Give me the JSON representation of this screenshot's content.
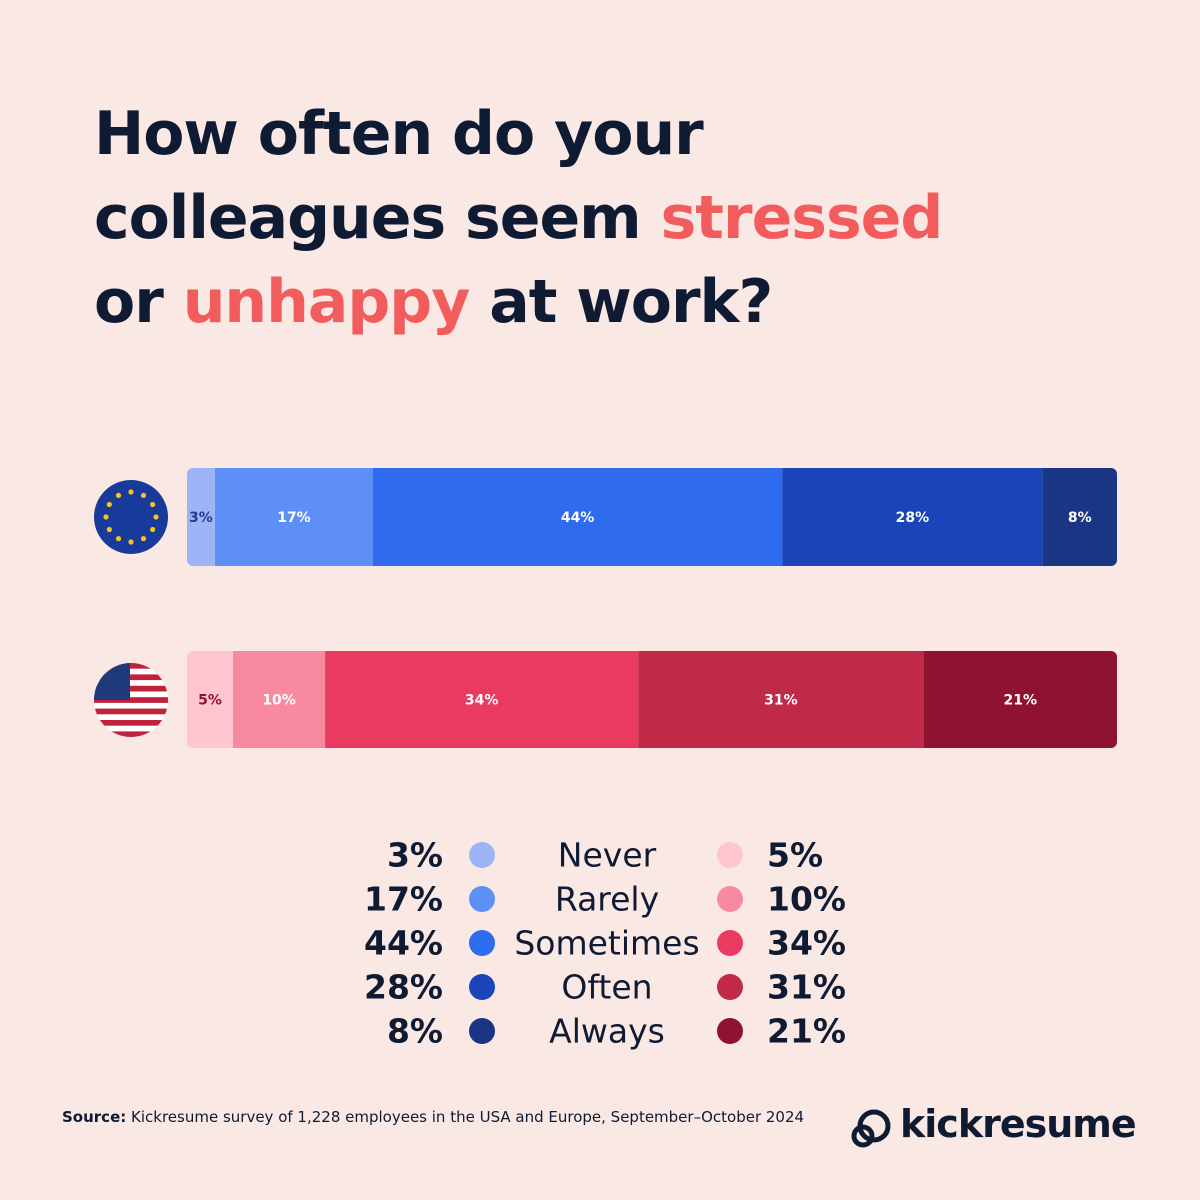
{
  "chart_data": {
    "type": "stacked-bar",
    "title_parts": [
      "How often do your",
      "colleagues seem",
      "stressed",
      "or",
      "unhappy",
      "at work?"
    ],
    "categories": [
      null,
      null
    ],
    "series": [
      {
        "name": "Never",
        "colors": [
          "#9db5f6",
          "#ffc5d0"
        ],
        "values": [
          3,
          5
        ],
        "value_labels": [
          "3%",
          "5%"
        ]
      },
      {
        "name": "Rarely",
        "colors": [
          "#5e8ff6",
          "#f88aa0"
        ],
        "values": [
          17,
          10
        ],
        "value_labels": [
          "17%",
          "10%"
        ]
      },
      {
        "name": "Sometimes",
        "colors": [
          "#2f6bee",
          "#ea3a61"
        ],
        "values": [
          44,
          34
        ],
        "value_labels": [
          "44%",
          "34%"
        ]
      },
      {
        "name": "Often",
        "colors": [
          "#1a45b8",
          "#c02a48"
        ],
        "values": [
          28,
          31
        ],
        "value_labels": [
          "28%",
          "31%"
        ]
      },
      {
        "name": "Always",
        "colors": [
          "#193584",
          "#8f1330"
        ],
        "values": [
          8,
          21
        ],
        "value_labels": [
          "8%",
          "21%"
        ]
      }
    ],
    "source_label": "Source:",
    "source": "Kickresume survey of 1,228 employees in the USA and Europe, September–October 2024",
    "brand": "kickresume"
  }
}
